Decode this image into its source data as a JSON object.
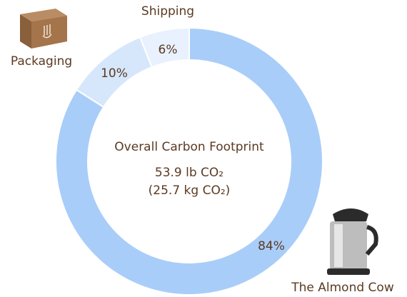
{
  "chart_data": {
    "type": "donut",
    "categories": [
      "The Almond Cow",
      "Packaging",
      "Shipping"
    ],
    "values": [
      84,
      10,
      6
    ],
    "value_labels": [
      "84%",
      "10%",
      "6%"
    ],
    "colors": [
      "#a9cdf9",
      "#d6e7fc",
      "#e8f1fd"
    ],
    "annotations": [
      "Overall Carbon Footprint",
      "53.9 lb CO₂",
      "(25.7 kg CO₂)"
    ]
  }
}
